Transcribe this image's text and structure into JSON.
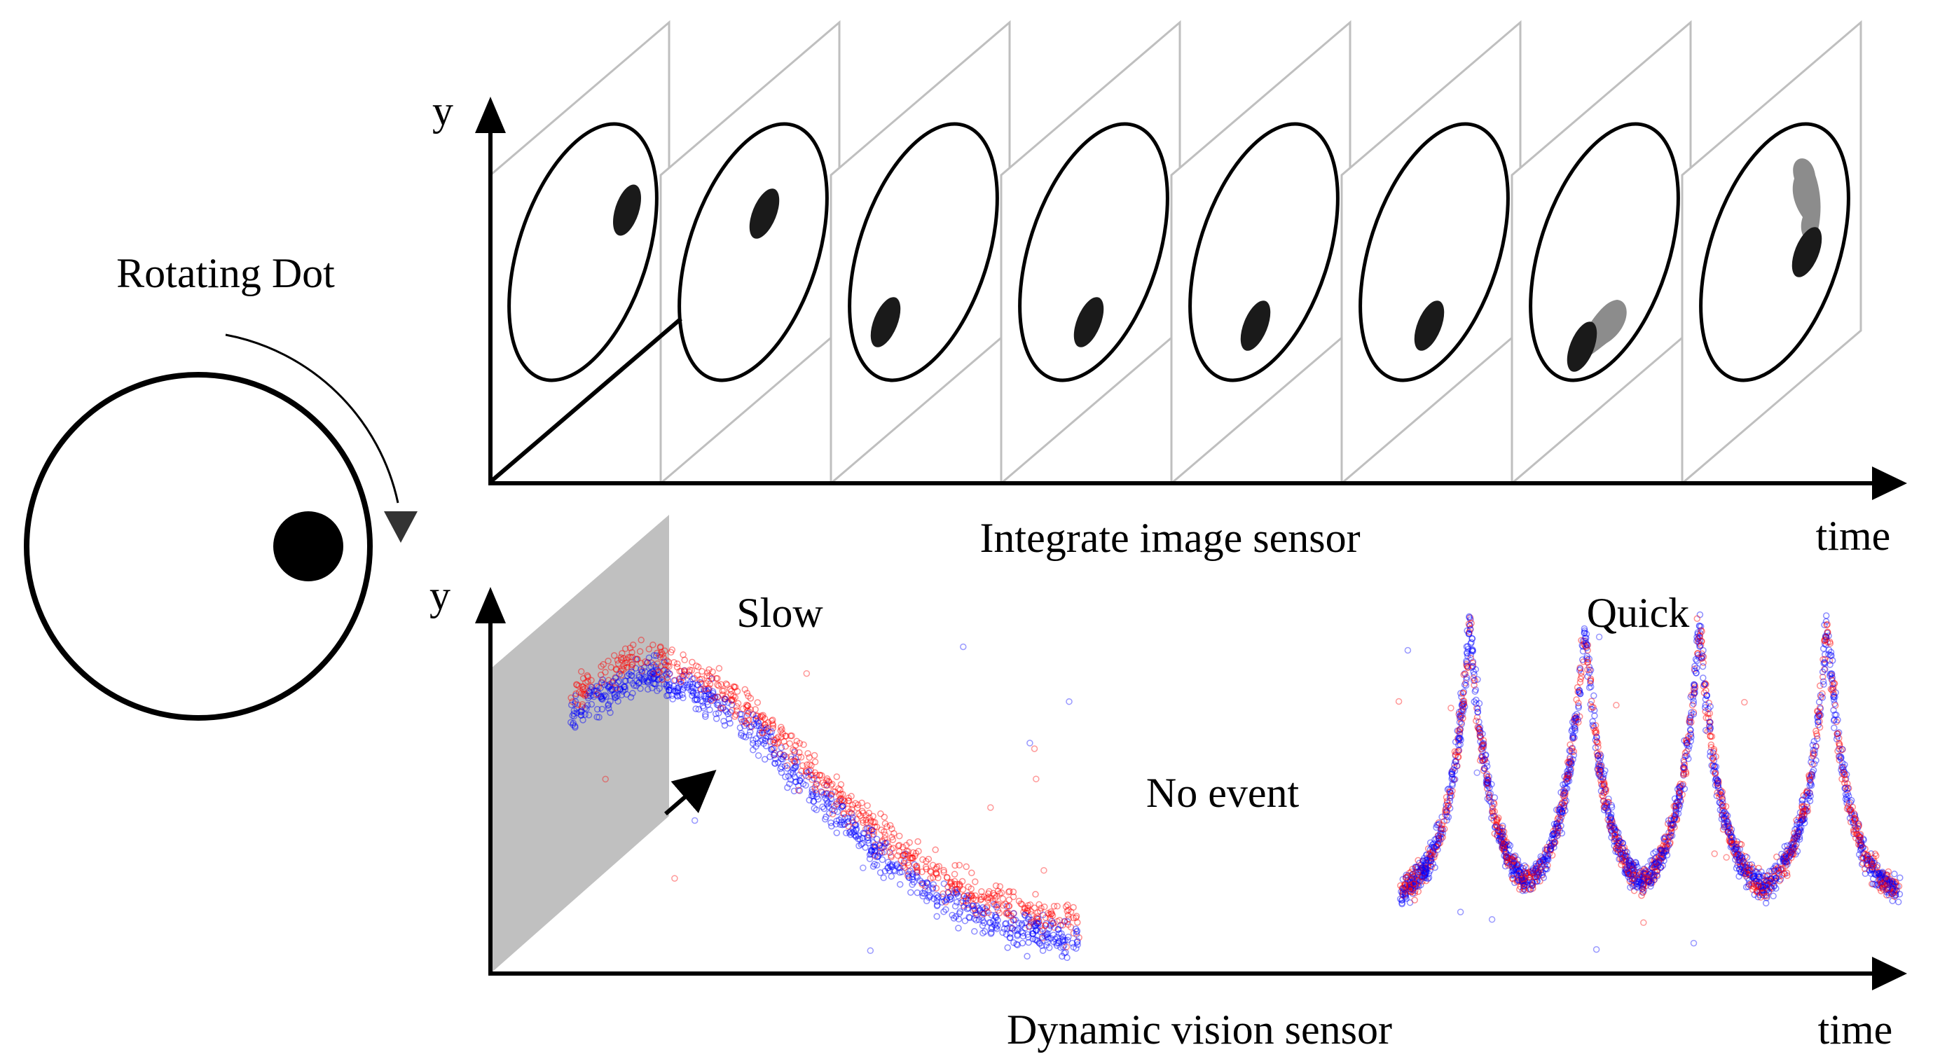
{
  "figure": {
    "rotating_dot_label": "Rotating Dot",
    "top_panel": {
      "y_label": "y",
      "x_label": "time",
      "caption": "Integrate image sensor"
    },
    "bottom_panel": {
      "y_label": "y",
      "x_label": "time",
      "caption": "Dynamic vision sensor",
      "slow_label": "Slow",
      "no_event_label": "No event",
      "quick_label": "Quick"
    }
  },
  "colors": {
    "axis": "#000000",
    "frame_border": "#bfbfbf",
    "dot": "#1a1a1a",
    "blur": "#8c8c8c",
    "event_positive": "#ff0000",
    "event_negative": "#0000ff",
    "slab": "#c0c0c0"
  },
  "frames": {
    "count": 8,
    "frames_with_motion_blur": [
      7,
      8
    ]
  }
}
